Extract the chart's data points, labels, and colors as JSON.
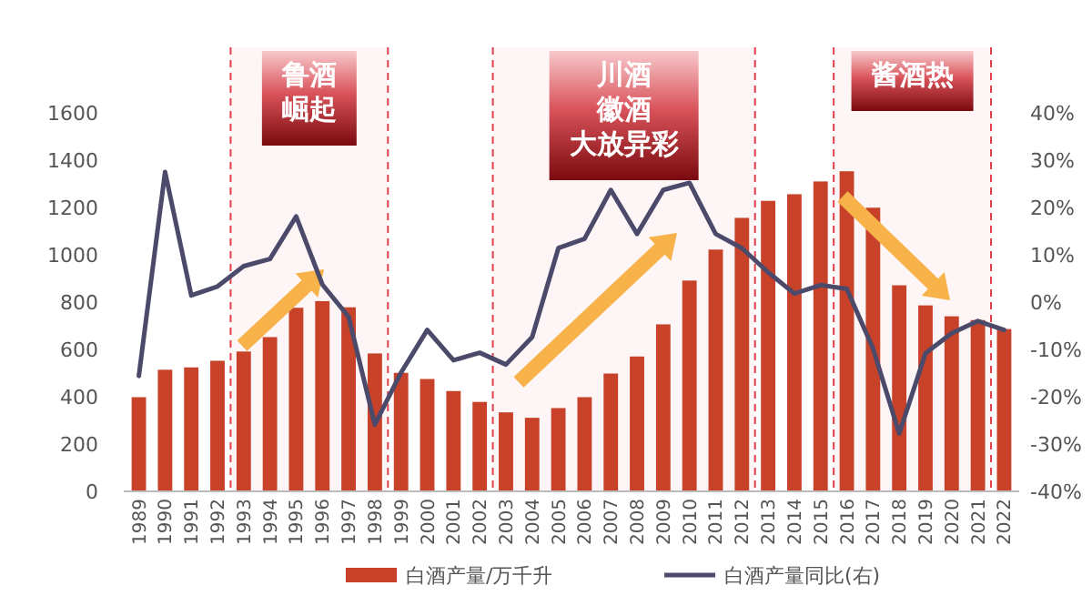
{
  "chart_data": {
    "type": "bar",
    "categories": [
      "1989",
      "1990",
      "1991",
      "1992",
      "1993",
      "1994",
      "1995",
      "1996",
      "1997",
      "1998",
      "1999",
      "2000",
      "2001",
      "2002",
      "2003",
      "2004",
      "2005",
      "2006",
      "2007",
      "2008",
      "2009",
      "2010",
      "2011",
      "2012",
      "2013",
      "2014",
      "2015",
      "2016",
      "2017",
      "2018",
      "2019",
      "2020",
      "2021",
      "2022"
    ],
    "series": [
      {
        "name": "白酒产量/万千升",
        "color": "#c8422a",
        "values": [
          398,
          514,
          524,
          552,
          591,
          652,
          776,
          804,
          778,
          583,
          501,
          475,
          424,
          378,
          334,
          311,
          352,
          398,
          498,
          570,
          706,
          891,
          1022,
          1156,
          1228,
          1256,
          1310,
          1353,
          1199,
          871,
          786,
          740,
          724,
          686
        ]
      },
      {
        "name": "白酒产量同比(右)",
        "type": "line",
        "axis": "y2",
        "color": "#4b4a6b",
        "values": [
          -15.6,
          27.5,
          1.4,
          3.3,
          7.6,
          9.1,
          18.1,
          3.7,
          -3.1,
          -25.9,
          -14.9,
          -5.9,
          -12.3,
          -10.7,
          -13.2,
          -7.4,
          11.4,
          13.4,
          23.7,
          14.4,
          23.7,
          25.2,
          14.4,
          11.4,
          6.3,
          1.8,
          3.6,
          2.8,
          -9.8,
          -27.8,
          -10.8,
          -6.6,
          -4,
          -5.9
        ]
      }
    ],
    "ylim": [
      0,
      1600
    ],
    "yticks": [
      0,
      200,
      400,
      600,
      800,
      1000,
      1200,
      1400,
      1600
    ],
    "y2lim": [
      -40,
      40
    ],
    "y2ticks": [
      {
        "value": -40,
        "label": "-40%"
      },
      {
        "value": -30,
        "label": "-30%"
      },
      {
        "value": -20,
        "label": "-20%"
      },
      {
        "value": -10,
        "label": "-10%"
      },
      {
        "value": 0,
        "label": "0%"
      },
      {
        "value": 10,
        "label": "10%"
      },
      {
        "value": 20,
        "label": "20%"
      },
      {
        "value": 30,
        "label": "30%"
      },
      {
        "value": 40,
        "label": "40%"
      }
    ],
    "bands": [
      {
        "axis": "x",
        "from": "1993",
        "to": "1998",
        "label": "鲁酒崛起",
        "color": "#e0404a"
      },
      {
        "axis": "x",
        "from": "2003",
        "to": "2012",
        "label": "川酒徽酒大放异彩",
        "color": "#e0404a"
      },
      {
        "axis": "x",
        "from": "2016",
        "to": "2021",
        "label": "酱酒热",
        "color": "#e0404a"
      }
    ],
    "legend": "bottom",
    "grid": false
  }
}
